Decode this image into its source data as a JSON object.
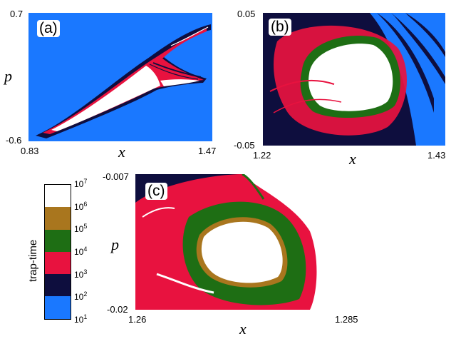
{
  "panels": {
    "a": {
      "label": "(a)",
      "x_min": "0.83",
      "x_max": "1.47",
      "y_min": "-0.6",
      "y_max": "0.7",
      "xlabel": "x",
      "ylabel": "p"
    },
    "b": {
      "label": "(b)",
      "x_min": "1.22",
      "x_max": "1.43",
      "y_min": "-0.05",
      "y_max": "0.05",
      "xlabel": "x"
    },
    "c": {
      "label": "(c)",
      "x_min": "1.26",
      "x_max": "1.285",
      "y_min": "-0.02",
      "y_max": "-0.007",
      "xlabel": "x",
      "ylabel": "p"
    }
  },
  "colorbar": {
    "title": "trap-time",
    "ticks": [
      {
        "base": "10",
        "exp": "7"
      },
      {
        "base": "10",
        "exp": "6"
      },
      {
        "base": "10",
        "exp": "5"
      },
      {
        "base": "10",
        "exp": "4"
      },
      {
        "base": "10",
        "exp": "3"
      },
      {
        "base": "10",
        "exp": "2"
      },
      {
        "base": "10",
        "exp": "1"
      }
    ],
    "colors_top_to_bottom": [
      "#ffffff",
      "#a9761e",
      "#1e6e14",
      "#e8123f",
      "#0e0e3e",
      "#1a78ff"
    ]
  },
  "colors": {
    "background_blue": "#1a78ff",
    "navy": "#0e0e3e",
    "red": "#e8123f",
    "green": "#1e6e14",
    "brown": "#a9761e",
    "white": "#ffffff"
  }
}
